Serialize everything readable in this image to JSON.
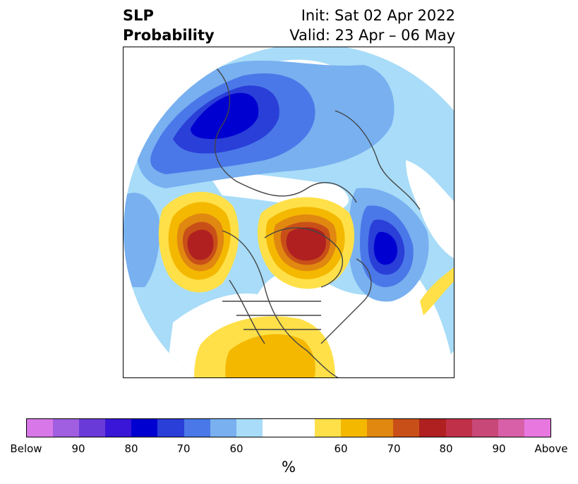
{
  "title": {
    "line1_left": "SLP",
    "line2_left": "Probability",
    "line1_right": "Init: Sat 02 Apr 2022",
    "line2_right": "Valid: 23 Apr – 06 May"
  },
  "colorbar": {
    "segments": [
      "#d878e8",
      "#a05ee0",
      "#6a3ad8",
      "#3a16d8",
      "#0000d0",
      "#2a3ed8",
      "#4a78e8",
      "#78b0f0",
      "#a8dcf8",
      "#ffffff",
      "#ffffff",
      "#ffe048",
      "#f4b800",
      "#e08810",
      "#c85018",
      "#b02020",
      "#c03048",
      "#c84878",
      "#d860a8",
      "#e878e0"
    ],
    "ticks": [
      "Below",
      "90",
      "80",
      "70",
      "60",
      "60",
      "70",
      "80",
      "90",
      "Above"
    ],
    "unit": "%"
  },
  "colors": {
    "ocean_light": "#a8dcf8",
    "blue_mid": "#78b0f0",
    "blue_deep": "#0000d0",
    "yellow": "#ffe048",
    "orange": "#f4b800",
    "red": "#b02020",
    "coast": "#444444"
  }
}
